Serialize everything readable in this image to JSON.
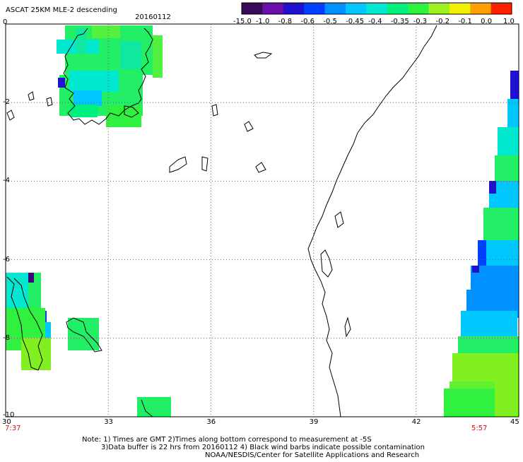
{
  "header": {
    "title": "ASCAT 25KM MLE-2 descending",
    "date": "20160112"
  },
  "colorbar": {
    "labels": [
      "-15.0",
      "-1.0",
      "-0.8",
      "-0.6",
      "-0.5",
      "-0.45",
      "-0.4",
      "-0.35",
      "-0.3",
      "-0.2",
      "-0.1",
      "0.0",
      "1.0"
    ],
    "colors": [
      "#3a0a5a",
      "#6a0fa8",
      "#2010d0",
      "#0040ff",
      "#0090ff",
      "#00c8ff",
      "#00e8d0",
      "#00f080",
      "#30f040",
      "#a0f020",
      "#f0f000",
      "#ffa000",
      "#ff2000"
    ]
  },
  "axes": {
    "x_ticks": [
      "30",
      "33",
      "36",
      "39",
      "42",
      "45"
    ],
    "y_ticks": [
      "0",
      "-2",
      "-4",
      "-6",
      "-8",
      "-10"
    ]
  },
  "times": {
    "left": "7:37",
    "right": "5:57"
  },
  "notes": {
    "line1": "Note: 1) Times are GMT 2)Times along bottom correspond to measurement at -5S",
    "line2": "3)Data buffer is 22 hrs from 20160112 4) Black wind barbs indicate possible contamination",
    "line3": "NOAA/NESDIS/Center for Satellite Applications and Research"
  }
}
